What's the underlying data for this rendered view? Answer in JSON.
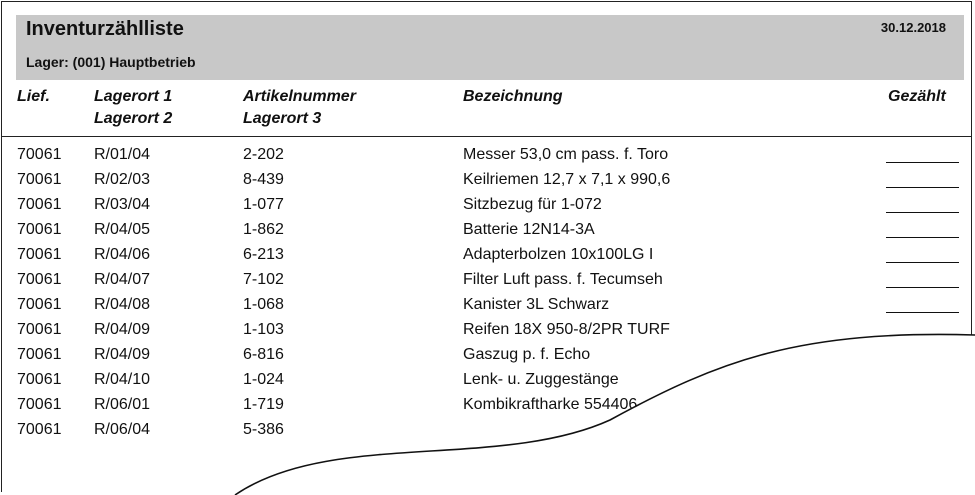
{
  "document": {
    "title": "Inventurzählliste",
    "date": "30.12.2018",
    "store": "Lager: (001) Hauptbetrieb"
  },
  "columns": {
    "lief": "Lief.",
    "lagerort1": "Lagerort 1",
    "lagerort2": "Lagerort 2",
    "artikelnummer": "Artikelnummer",
    "lagerort3": "Lagerort 3",
    "bezeichnung": "Bezeichnung",
    "gezaehlt": "Gezählt"
  },
  "rows": [
    {
      "lief": "70061",
      "lagerort": "R/01/04",
      "artikel": "2-202",
      "bezeichnung": "Messer 53,0 cm pass. f. Toro"
    },
    {
      "lief": "70061",
      "lagerort": "R/02/03",
      "artikel": "8-439",
      "bezeichnung": "Keilriemen 12,7 x 7,1 x 990,6"
    },
    {
      "lief": "70061",
      "lagerort": "R/03/04",
      "artikel": "1-077",
      "bezeichnung": "Sitzbezug für 1-072"
    },
    {
      "lief": "70061",
      "lagerort": "R/04/05",
      "artikel": "1-862",
      "bezeichnung": "Batterie 12N14-3A"
    },
    {
      "lief": "70061",
      "lagerort": "R/04/06",
      "artikel": "6-213",
      "bezeichnung": "Adapterbolzen 10x100LG I"
    },
    {
      "lief": "70061",
      "lagerort": "R/04/07",
      "artikel": "7-102",
      "bezeichnung": "Filter Luft pass. f. Tecumseh"
    },
    {
      "lief": "70061",
      "lagerort": "R/04/08",
      "artikel": "1-068",
      "bezeichnung": "Kanister 3L Schwarz"
    },
    {
      "lief": "70061",
      "lagerort": "R/04/09",
      "artikel": "1-103",
      "bezeichnung": "Reifen 18X 950-8/2PR TURF"
    },
    {
      "lief": "70061",
      "lagerort": "R/04/09",
      "artikel": "6-816",
      "bezeichnung": "Gaszug p. f. Echo"
    },
    {
      "lief": "70061",
      "lagerort": "R/04/10",
      "artikel": "1-024",
      "bezeichnung": "Lenk- u. Zuggestänge"
    },
    {
      "lief": "70061",
      "lagerort": "R/06/01",
      "artikel": "1-719",
      "bezeichnung": "Kombikraftharke 554406"
    },
    {
      "lief": "70061",
      "lagerort": "R/06/04",
      "artikel": "5-386",
      "bezeichnung": ""
    }
  ]
}
